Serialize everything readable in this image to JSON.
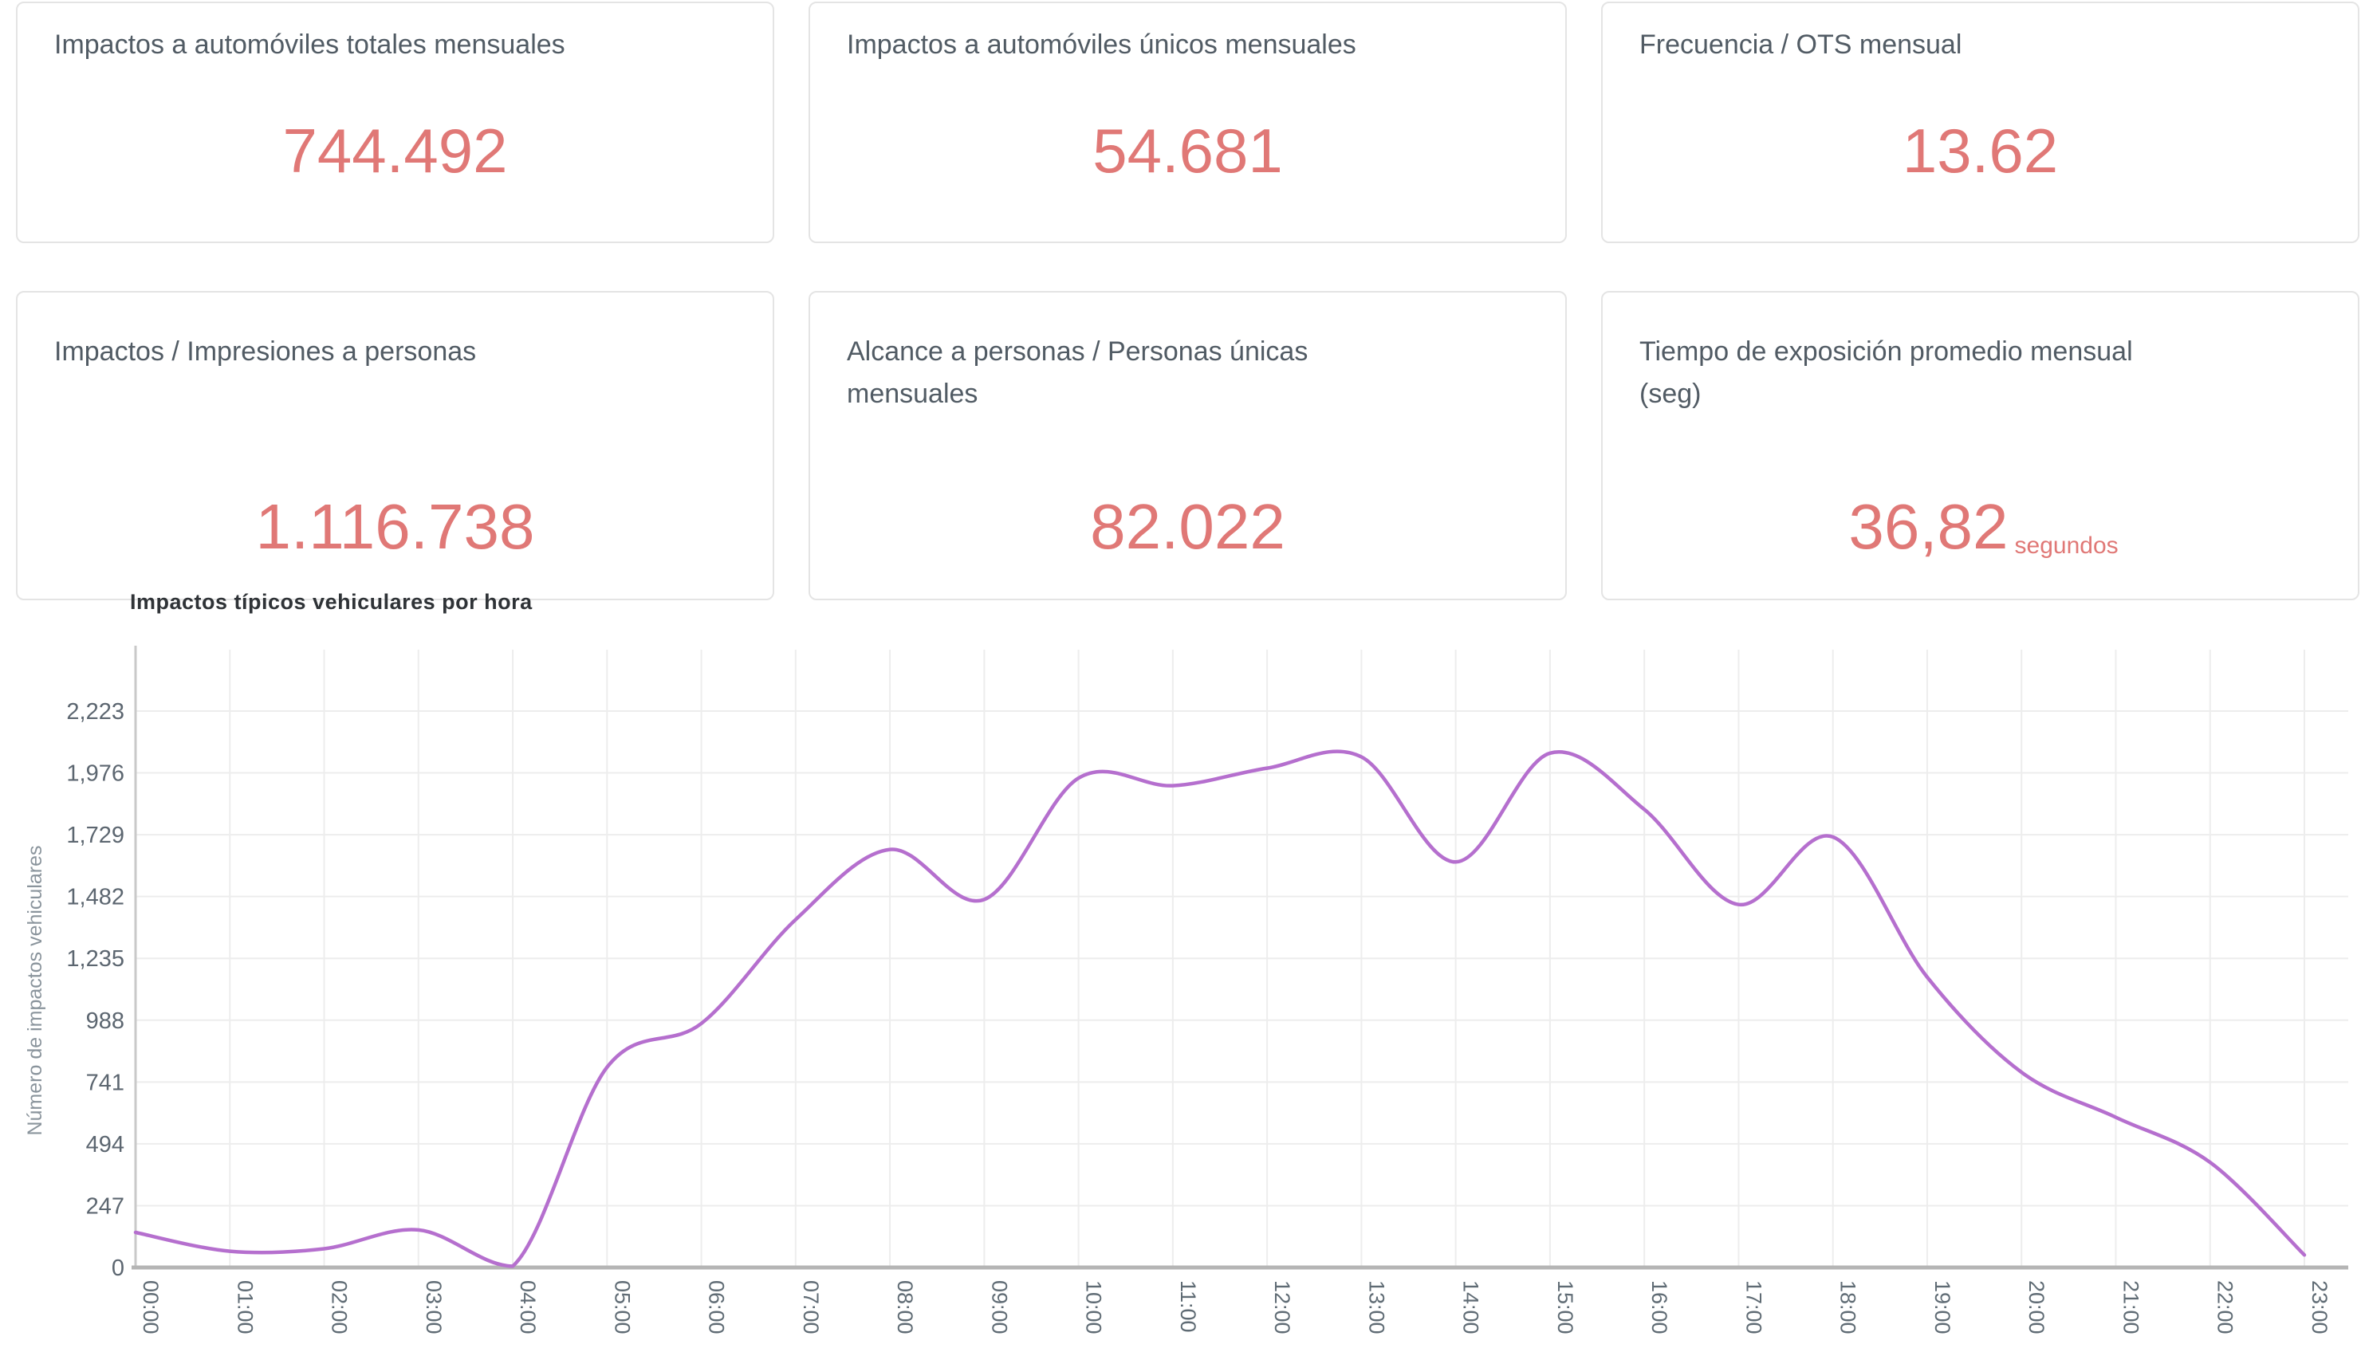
{
  "kpi_cards": [
    {
      "title": "Impactos a automóviles totales mensuales",
      "value": "744.492"
    },
    {
      "title": "Impactos a automóviles únicos mensuales",
      "value": "54.681"
    },
    {
      "title": "Frecuencia / OTS mensual",
      "value": "13.62"
    },
    {
      "title": "Impactos / Impresiones a personas",
      "value": "1.116.738"
    },
    {
      "title": "Alcance a personas / Personas únicas mensuales",
      "value": "82.022"
    },
    {
      "title": "Tiempo de exposición promedio mensual (seg)",
      "value": "36,82",
      "value_suffix": "segundos"
    }
  ],
  "colors": {
    "kpi_value": "#e07876",
    "card_title": "#515b64",
    "card_border": "#e4e4e4",
    "chart_line": "#b56fce",
    "grid_line": "#ededed",
    "axis_line": "#b5b5b5",
    "tick_label": "#5c6670"
  },
  "chart_data": {
    "type": "line",
    "title": "Impactos típicos vehiculares por hora",
    "xlabel": "",
    "ylabel": "Número de impactos vehiculares",
    "x": [
      "00:00",
      "01:00",
      "02:00",
      "03:00",
      "04:00",
      "05:00",
      "06:00",
      "07:00",
      "08:00",
      "09:00",
      "10:00",
      "11:00",
      "12:00",
      "13:00",
      "14:00",
      "15:00",
      "16:00",
      "17:00",
      "18:00",
      "19:00",
      "20:00",
      "21:00",
      "22:00",
      "23:00"
    ],
    "series": [
      {
        "name": "Impactos vehiculares",
        "values": [
          140,
          65,
          75,
          150,
          5,
          800,
          975,
          1390,
          1670,
          1470,
          1955,
          1925,
          1995,
          2040,
          1620,
          2055,
          1830,
          1450,
          1720,
          1160,
          780,
          600,
          420,
          50
        ]
      }
    ],
    "ylim": [
      0,
      2223
    ],
    "yticks": [
      0,
      247,
      494,
      741,
      988,
      1235,
      1482,
      1729,
      1976,
      2223
    ],
    "grid": true,
    "legend": "none",
    "line_color": "#b56fce"
  }
}
